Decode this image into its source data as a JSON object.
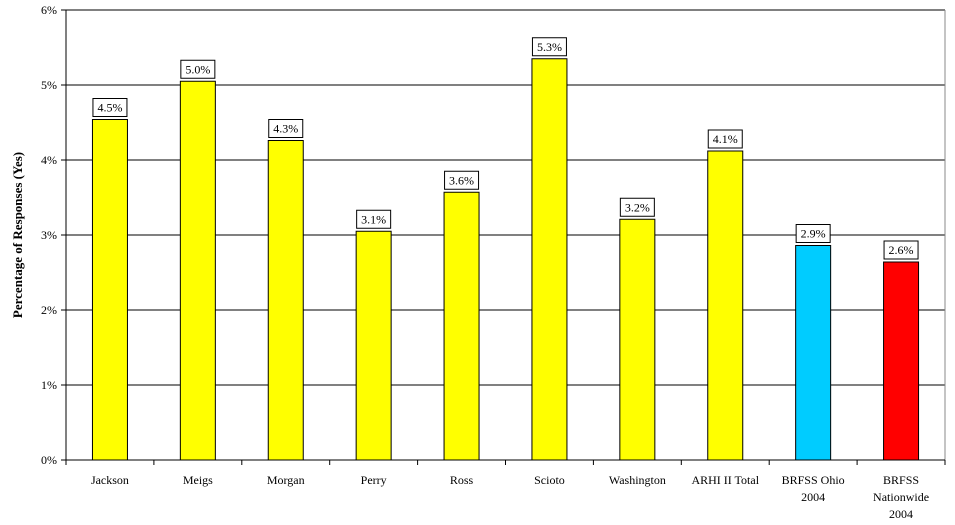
{
  "chart_data": {
    "type": "bar",
    "title": "",
    "xlabel": "",
    "ylabel": "Percentage of Responses (Yes)",
    "ylim": [
      0,
      6
    ],
    "yticks": [
      0,
      1,
      2,
      3,
      4,
      5,
      6
    ],
    "ytick_labels": [
      "0%",
      "1%",
      "2%",
      "3%",
      "4%",
      "5%",
      "6%"
    ],
    "grid": true,
    "categories": [
      [
        "Jackson"
      ],
      [
        "Meigs"
      ],
      [
        "Morgan"
      ],
      [
        "Perry"
      ],
      [
        "Ross"
      ],
      [
        "Scioto"
      ],
      [
        "Washington"
      ],
      [
        "ARHI II Total"
      ],
      [
        "BRFSS Ohio",
        "2004"
      ],
      [
        "BRFSS",
        "Nationwide",
        "2004"
      ]
    ],
    "values": [
      4.54,
      5.05,
      4.26,
      3.05,
      3.57,
      5.35,
      3.21,
      4.12,
      2.86,
      2.64
    ],
    "data_labels": [
      "4.5%",
      "5.0%",
      "4.3%",
      "3.1%",
      "3.6%",
      "5.3%",
      "3.2%",
      "4.1%",
      "2.9%",
      "2.6%"
    ],
    "colors": [
      "#ffff00",
      "#ffff00",
      "#ffff00",
      "#ffff00",
      "#ffff00",
      "#ffff00",
      "#ffff00",
      "#ffff00",
      "#00ccff",
      "#ff0000"
    ]
  }
}
